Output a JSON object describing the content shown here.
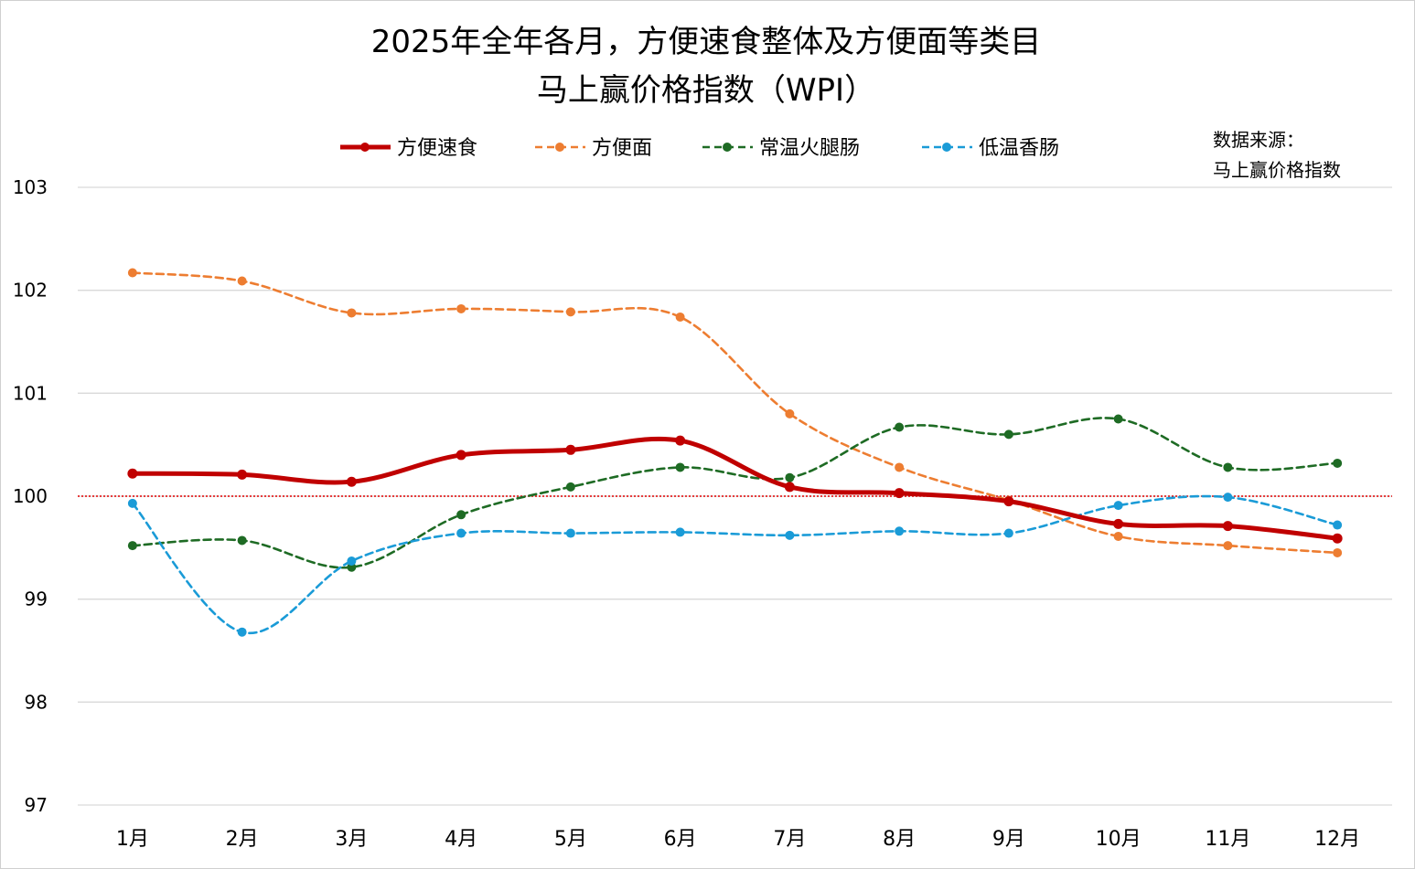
{
  "chart_data": {
    "type": "line",
    "title": [
      "2025年全年各月，方便速食整体及方便面等类目",
      "马上赢价格指数（WPI）"
    ],
    "source": [
      "数据来源：",
      "马上赢价格指数"
    ],
    "xlabel": "",
    "ylabel": "",
    "categories": [
      "1月",
      "2月",
      "3月",
      "4月",
      "5月",
      "6月",
      "7月",
      "8月",
      "9月",
      "10月",
      "11月",
      "12月"
    ],
    "ylim": [
      97,
      103
    ],
    "yticks": [
      97,
      98,
      99,
      100,
      101,
      102,
      103
    ],
    "grid": true,
    "legend_position": "top",
    "reference_line": {
      "value": 100,
      "color": "#e00000",
      "style": "dotted"
    },
    "series": [
      {
        "name": "方便速食",
        "color": "#c00000",
        "style": "solid",
        "smooth": true,
        "values": [
          100.22,
          100.21,
          100.14,
          100.4,
          100.45,
          100.54,
          100.09,
          100.03,
          99.95,
          99.73,
          99.71,
          99.59
        ]
      },
      {
        "name": "方便面",
        "color": "#ed7d31",
        "style": "dashed",
        "smooth": true,
        "values": [
          102.17,
          102.09,
          101.78,
          101.82,
          101.79,
          101.74,
          100.8,
          100.28,
          99.96,
          99.61,
          99.52,
          99.45
        ]
      },
      {
        "name": "常温火腿肠",
        "color": "#1e6b24",
        "style": "dashed",
        "smooth": true,
        "values": [
          99.52,
          99.57,
          99.31,
          99.82,
          100.09,
          100.28,
          100.18,
          100.67,
          100.6,
          100.75,
          100.28,
          100.32
        ]
      },
      {
        "name": "低温香肠",
        "color": "#1a9bd7",
        "style": "dashed",
        "smooth": true,
        "values": [
          99.93,
          98.68,
          99.37,
          99.64,
          99.64,
          99.65,
          99.62,
          99.66,
          99.64,
          99.91,
          99.99,
          99.72
        ]
      }
    ]
  }
}
